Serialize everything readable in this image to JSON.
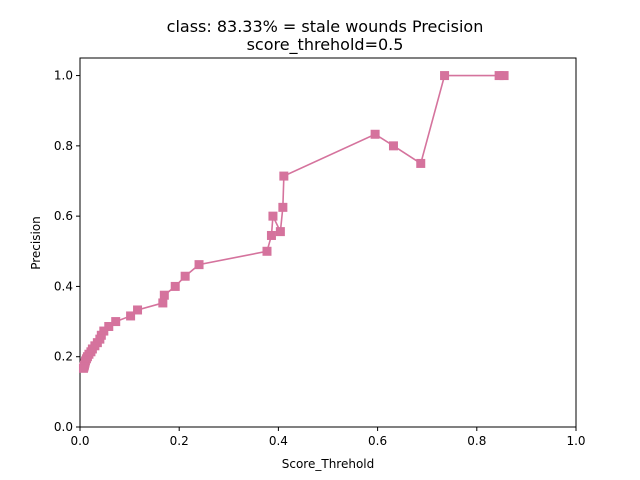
{
  "chart_data": {
    "type": "line",
    "title": "class: 83.33% = stale wounds Precision",
    "subtitle": "score_threhold=0.5",
    "xlabel": "Score_Threhold",
    "ylabel": "Precision",
    "xlim": [
      0.0,
      1.0
    ],
    "ylim": [
      0.0,
      1.05
    ],
    "xticks": [
      "0.0",
      "0.2",
      "0.4",
      "0.6",
      "0.8",
      "1.0"
    ],
    "yticks": [
      "0.0",
      "0.2",
      "0.4",
      "0.6",
      "0.8",
      "1.0"
    ],
    "grid": false,
    "series": [
      {
        "color": "#d5739d",
        "marker": "square",
        "points": [
          [
            0.855,
            1.0
          ],
          [
            0.845,
            1.0
          ],
          [
            0.735,
            1.0
          ],
          [
            0.687,
            0.75
          ],
          [
            0.632,
            0.8
          ],
          [
            0.595,
            0.833
          ],
          [
            0.411,
            0.714
          ],
          [
            0.409,
            0.625
          ],
          [
            0.404,
            0.556
          ],
          [
            0.389,
            0.6
          ],
          [
            0.386,
            0.545
          ],
          [
            0.377,
            0.5
          ],
          [
            0.24,
            0.462
          ],
          [
            0.212,
            0.429
          ],
          [
            0.192,
            0.4
          ],
          [
            0.17,
            0.375
          ],
          [
            0.167,
            0.353
          ],
          [
            0.116,
            0.333
          ],
          [
            0.102,
            0.316
          ],
          [
            0.072,
            0.3
          ],
          [
            0.058,
            0.286
          ],
          [
            0.048,
            0.273
          ],
          [
            0.043,
            0.261
          ],
          [
            0.04,
            0.25
          ],
          [
            0.035,
            0.24
          ],
          [
            0.03,
            0.231
          ],
          [
            0.025,
            0.222
          ],
          [
            0.022,
            0.214
          ],
          [
            0.018,
            0.207
          ],
          [
            0.015,
            0.2
          ],
          [
            0.013,
            0.194
          ],
          [
            0.011,
            0.188
          ],
          [
            0.01,
            0.182
          ],
          [
            0.009,
            0.176
          ],
          [
            0.008,
            0.171
          ],
          [
            0.007,
            0.167
          ]
        ]
      }
    ]
  }
}
